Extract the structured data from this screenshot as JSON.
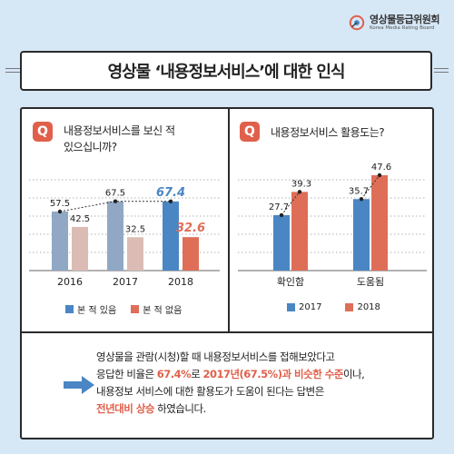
{
  "brand": {
    "name_ko": "영상물등급위원회",
    "name_en": "Korea Media Rating Board"
  },
  "title": "영상물 ‘내용정보서비스’에 대한 인식",
  "q1": {
    "badge": "Q",
    "lines": [
      "내용정보서비스를 보신 적",
      "있으십니까?"
    ]
  },
  "q2": {
    "badge": "Q",
    "lines": [
      "내용정보서비스 활용도는?"
    ]
  },
  "colors": {
    "blue": "#4b86c4",
    "red": "#df6e58",
    "gray_blue": "#90a8c4",
    "gray_red": "#dbbcb5",
    "accent": "#e0604b"
  },
  "chart_data": [
    {
      "type": "bar",
      "categories": [
        "2016",
        "2017",
        "2018"
      ],
      "series": [
        {
          "name": "본 적 있음",
          "values": [
            57.5,
            67.5,
            67.4
          ]
        },
        {
          "name": "본 적 없음",
          "values": [
            42.5,
            32.5,
            32.6
          ]
        }
      ],
      "legend": [
        "본 적 있음",
        "본 적 없음"
      ],
      "legend_position": "bottom",
      "ylim": [
        0,
        80
      ],
      "grid": true
    },
    {
      "type": "bar",
      "categories": [
        "확인함",
        "도움됨"
      ],
      "series": [
        {
          "name": "2017",
          "values": [
            27.7,
            35.7
          ]
        },
        {
          "name": "2018",
          "values": [
            39.3,
            47.6
          ]
        }
      ],
      "legend": [
        "2017",
        "2018"
      ],
      "legend_position": "bottom",
      "ylim": [
        0,
        60
      ],
      "grid": true
    }
  ],
  "summary": {
    "line1": "영상물을 관람(시청)할 때 내용정보서비스를 접해보았다고",
    "line2_pre": "응답한 비율은 ",
    "line2_hl1": "67.4%",
    "line2_mid": "로 ",
    "line2_hl2": "2017년(67.5%)과 비슷한 수준",
    "line2_post": "이나,",
    "line3": "내용정보 서비스에 대한 활용도가 도움이 된다는 답변은",
    "line4_hl": "전년대비 상승",
    "line4_post": " 하였습니다."
  }
}
